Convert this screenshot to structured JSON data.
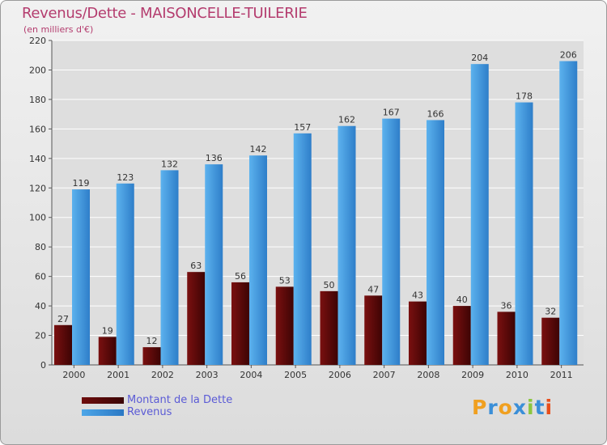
{
  "header": {
    "title": "Revenus/Dette - MAISONCELLE-TUILERIE",
    "subtitle": "(en milliers d'€)"
  },
  "colors": {
    "dette": "#6e0c0c",
    "revenus": "#4da6e8",
    "grid": "#ffffff",
    "text": "#333333"
  },
  "chart_data": {
    "type": "bar",
    "title": "Revenus/Dette - MAISONCELLE-TUILERIE",
    "subtitle": "(en milliers d'€)",
    "xlabel": "",
    "ylabel": "",
    "ylim": [
      0,
      220
    ],
    "yticks": [
      0,
      20,
      40,
      60,
      80,
      100,
      120,
      140,
      160,
      180,
      200,
      220
    ],
    "grid": true,
    "categories": [
      "2000",
      "2001",
      "2002",
      "2003",
      "2004",
      "2005",
      "2006",
      "2007",
      "2008",
      "2009",
      "2010",
      "2011"
    ],
    "series": [
      {
        "name": "Montant de la Dette",
        "values": [
          27,
          19,
          12,
          63,
          56,
          53,
          50,
          47,
          43,
          40,
          36,
          32
        ]
      },
      {
        "name": "Revenus",
        "values": [
          119,
          123,
          132,
          136,
          142,
          157,
          162,
          167,
          166,
          204,
          178,
          206
        ]
      }
    ],
    "legend_position": "bottom-left"
  },
  "legend": {
    "items": [
      {
        "label": "Montant de la Dette",
        "color": "#6e0c0c"
      },
      {
        "label": "Revenus",
        "color": "#4da6e8"
      }
    ]
  },
  "logo": {
    "text": "Proxiti",
    "letters": [
      "P",
      "r",
      "o",
      "x",
      "i",
      "t",
      "i"
    ],
    "letter_colors": [
      "#f0a020",
      "#3a8fd8",
      "#f0a020",
      "#3a8fd8",
      "#8cc63f",
      "#3a8fd8",
      "#e84e1b"
    ]
  }
}
